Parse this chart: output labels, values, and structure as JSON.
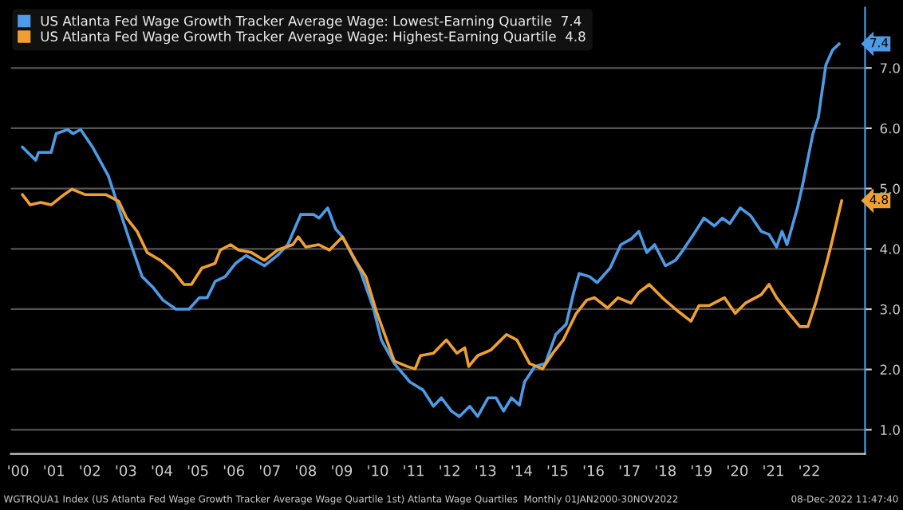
{
  "chart_data": {
    "type": "line",
    "series": [
      {
        "name": "US Atlanta Fed Wage Growth Tracker Average Wage: Lowest-Earning Quartile  7.4",
        "color": "#4d9be6",
        "x": [
          2000.12,
          2000.49,
          2000.57,
          2000.92,
          2001.06,
          2001.38,
          2001.53,
          2001.74,
          2002.07,
          2002.51,
          2003.09,
          2003.45,
          2003.74,
          2004.03,
          2004.39,
          2004.75,
          2005.04,
          2005.26,
          2005.48,
          2005.76,
          2006.05,
          2006.34,
          2006.85,
          2007.21,
          2007.5,
          2007.86,
          2008.22,
          2008.37,
          2008.61,
          2008.83,
          2009.02,
          2009.52,
          2009.88,
          2010.1,
          2010.46,
          2010.9,
          2011.26,
          2011.55,
          2011.77,
          2012.05,
          2012.27,
          2012.56,
          2012.78,
          2013.07,
          2013.29,
          2013.5,
          2013.72,
          2013.94,
          2014.08,
          2014.37,
          2014.66,
          2014.95,
          2015.24,
          2015.45,
          2015.6,
          2015.89,
          2016.1,
          2016.46,
          2016.76,
          2017.04,
          2017.26,
          2017.48,
          2017.7,
          2018.0,
          2018.28,
          2018.49,
          2018.78,
          2019.07,
          2019.36,
          2019.58,
          2019.79,
          2020.08,
          2020.37,
          2020.66,
          2020.88,
          2021.09,
          2021.24,
          2021.38,
          2021.67,
          2021.82,
          2022.1,
          2022.25,
          2022.46,
          2022.65,
          2022.83
        ],
        "values": [
          5.69,
          5.47,
          5.6,
          5.6,
          5.91,
          5.98,
          5.91,
          5.98,
          5.69,
          5.21,
          4.16,
          3.54,
          3.37,
          3.15,
          3.0,
          3.0,
          3.19,
          3.19,
          3.46,
          3.54,
          3.76,
          3.89,
          3.72,
          3.89,
          4.07,
          4.57,
          4.57,
          4.51,
          4.68,
          4.33,
          4.2,
          3.63,
          3.02,
          2.49,
          2.1,
          1.79,
          1.66,
          1.39,
          1.53,
          1.31,
          1.22,
          1.39,
          1.22,
          1.53,
          1.53,
          1.31,
          1.53,
          1.41,
          1.79,
          2.05,
          2.1,
          2.58,
          2.75,
          3.28,
          3.59,
          3.54,
          3.44,
          3.68,
          4.07,
          4.16,
          4.29,
          3.94,
          4.07,
          3.72,
          3.81,
          3.98,
          4.24,
          4.51,
          4.38,
          4.51,
          4.42,
          4.68,
          4.55,
          4.29,
          4.24,
          4.03,
          4.29,
          4.07,
          4.68,
          5.08,
          5.91,
          6.18,
          7.05,
          7.3,
          7.4
        ]
      },
      {
        "name": "US Atlanta Fed Wage Growth Tracker Average Wage: Highest-Earning Quartile  4.8",
        "color": "#f0a030",
        "x": [
          2000.12,
          2000.34,
          2000.63,
          2000.92,
          2001.28,
          2001.5,
          2001.86,
          2002.44,
          2002.8,
          2003.02,
          2003.31,
          2003.59,
          2003.96,
          2004.32,
          2004.61,
          2004.82,
          2005.11,
          2005.48,
          2005.62,
          2005.91,
          2006.13,
          2006.49,
          2006.85,
          2007.21,
          2007.64,
          2007.79,
          2008.0,
          2008.36,
          2008.66,
          2009.02,
          2009.38,
          2009.67,
          2009.96,
          2010.25,
          2010.46,
          2010.82,
          2011.04,
          2011.19,
          2011.55,
          2011.91,
          2012.2,
          2012.42,
          2012.53,
          2012.78,
          2013.14,
          2013.36,
          2013.58,
          2013.87,
          2014.22,
          2014.58,
          2014.87,
          2015.16,
          2015.52,
          2015.81,
          2016.03,
          2016.39,
          2016.68,
          2017.04,
          2017.26,
          2017.55,
          2017.91,
          2018.34,
          2018.71,
          2018.93,
          2019.22,
          2019.64,
          2019.94,
          2020.22,
          2020.66,
          2020.88,
          2021.09,
          2021.38,
          2021.74,
          2021.96,
          2022.18,
          2022.46,
          2022.61,
          2022.9
        ],
        "values": [
          4.9,
          4.73,
          4.77,
          4.73,
          4.9,
          4.99,
          4.9,
          4.9,
          4.79,
          4.51,
          4.29,
          3.94,
          3.81,
          3.63,
          3.41,
          3.41,
          3.68,
          3.76,
          3.98,
          4.07,
          3.98,
          3.94,
          3.81,
          3.98,
          4.07,
          4.2,
          4.03,
          4.07,
          3.98,
          4.2,
          3.81,
          3.54,
          2.97,
          2.49,
          2.14,
          2.05,
          2.01,
          2.23,
          2.27,
          2.49,
          2.27,
          2.36,
          2.05,
          2.23,
          2.32,
          2.45,
          2.58,
          2.49,
          2.1,
          2.01,
          2.27,
          2.49,
          2.93,
          3.15,
          3.19,
          3.02,
          3.19,
          3.1,
          3.28,
          3.41,
          3.19,
          2.97,
          2.8,
          3.06,
          3.06,
          3.19,
          2.93,
          3.1,
          3.24,
          3.41,
          3.19,
          2.97,
          2.71,
          2.71,
          3.11,
          3.72,
          4.07,
          4.8
        ]
      }
    ],
    "xlim": [
      1999.8,
      2023.55
    ],
    "xticks": [
      {
        "value": 2000,
        "label": "'00"
      },
      {
        "value": 2001,
        "label": "'01"
      },
      {
        "value": 2002,
        "label": "'02"
      },
      {
        "value": 2003,
        "label": "'03"
      },
      {
        "value": 2004,
        "label": "'04"
      },
      {
        "value": 2005,
        "label": "'05"
      },
      {
        "value": 2006,
        "label": "'06"
      },
      {
        "value": 2007,
        "label": "'07"
      },
      {
        "value": 2008,
        "label": "'08"
      },
      {
        "value": 2009,
        "label": "'09"
      },
      {
        "value": 2010,
        "label": "'10"
      },
      {
        "value": 2011,
        "label": "'11"
      },
      {
        "value": 2012,
        "label": "'12"
      },
      {
        "value": 2013,
        "label": "'13"
      },
      {
        "value": 2014,
        "label": "'14"
      },
      {
        "value": 2015,
        "label": "'15"
      },
      {
        "value": 2016,
        "label": "'16"
      },
      {
        "value": 2017,
        "label": "'17"
      },
      {
        "value": 2018,
        "label": "'18"
      },
      {
        "value": 2019,
        "label": "'19"
      },
      {
        "value": 2020,
        "label": "'20"
      },
      {
        "value": 2021,
        "label": "'21"
      },
      {
        "value": 2022,
        "label": "'22"
      }
    ],
    "ylim": [
      0.6,
      8.0
    ],
    "yticks": [
      {
        "value": 1,
        "label": "1.0"
      },
      {
        "value": 2,
        "label": "2.0"
      },
      {
        "value": 3,
        "label": "3.0"
      },
      {
        "value": 4,
        "label": "4.0"
      },
      {
        "value": 5,
        "label": "5.0"
      },
      {
        "value": 6,
        "label": "6.0"
      },
      {
        "value": 7,
        "label": "7.0"
      }
    ],
    "grid": "y",
    "legend": "top left",
    "annotations": [
      "7.4",
      "4.8",
      "WGTRQUA1 Index (US Atlanta Fed Wage Growth Tracker Average Wage Quartile 1st) Atlanta Wage Quartiles  Monthly 01JAN2000-30NOV2022",
      "08-Dec-2022 11:47:40"
    ]
  }
}
